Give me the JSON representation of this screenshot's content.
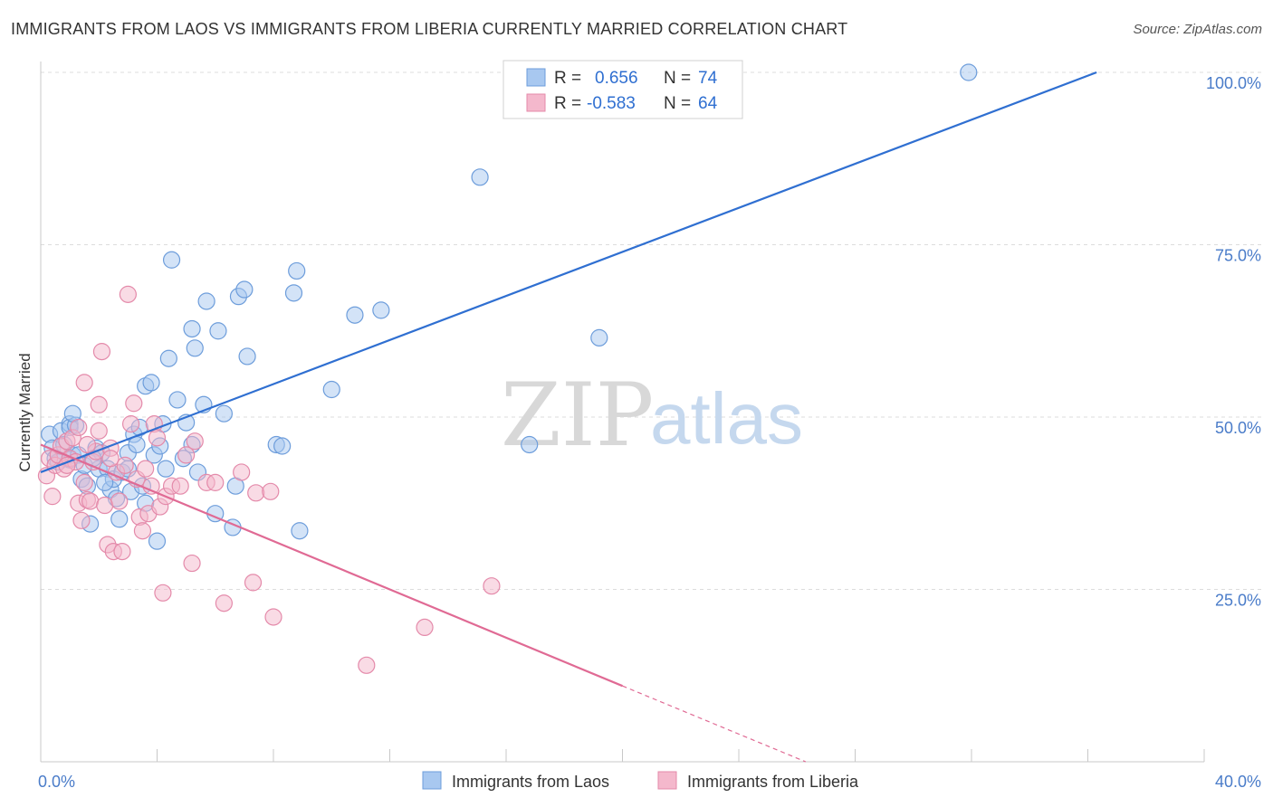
{
  "title": "IMMIGRANTS FROM LAOS VS IMMIGRANTS FROM LIBERIA CURRENTLY MARRIED CORRELATION CHART",
  "source": "Source: ZipAtlas.com",
  "watermark": {
    "zip": "ZIP",
    "atlas": "atlas"
  },
  "colors": {
    "laos": "#2f6fd1",
    "laos_fill": "#a8c8f0",
    "liberia": "#e06a94",
    "liberia_fill": "#f4b8cc",
    "tick_label": "#4a7cc9",
    "grid": "#dcdcdc"
  },
  "legend": {
    "r_label": "R =",
    "n_label": "N =",
    "laos": {
      "r": "0.656",
      "n": "74"
    },
    "liberia": {
      "r": "-0.583",
      "n": "64"
    }
  },
  "chart_data": {
    "type": "scatter",
    "title": "IMMIGRANTS FROM LAOS VS IMMIGRANTS FROM LIBERIA CURRENTLY MARRIED CORRELATION CHART",
    "xlabel": "",
    "ylabel": "Currently Married",
    "xlim": [
      0,
      40
    ],
    "ylim": [
      0,
      102
    ],
    "x_tick_labels": [
      "0.0%",
      "40.0%"
    ],
    "y_ticks": [
      25,
      50,
      75,
      100
    ],
    "y_tick_labels": [
      "25.0%",
      "50.0%",
      "75.0%",
      "100.0%"
    ],
    "grid": true,
    "legend_position": "top-center",
    "series": [
      {
        "name": "Immigrants from Laos",
        "r": 0.656,
        "n": 74,
        "trend": {
          "x": [
            0,
            36.3
          ],
          "y": [
            42,
            100
          ]
        },
        "points": [
          [
            0.3,
            47.5
          ],
          [
            0.4,
            45.5
          ],
          [
            0.5,
            44.0
          ],
          [
            0.7,
            48.0
          ],
          [
            0.8,
            46.0
          ],
          [
            1.0,
            43.8
          ],
          [
            1.1,
            44.5
          ],
          [
            1.0,
            49.0
          ],
          [
            1.0,
            48.5
          ],
          [
            1.2,
            48.8
          ],
          [
            1.1,
            50.5
          ],
          [
            1.3,
            44.5
          ],
          [
            1.4,
            41.0
          ],
          [
            1.5,
            43.0
          ],
          [
            1.6,
            40.0
          ],
          [
            1.7,
            34.5
          ],
          [
            1.9,
            45.5
          ],
          [
            2.0,
            42.5
          ],
          [
            2.1,
            44.8
          ],
          [
            2.3,
            42.5
          ],
          [
            2.4,
            39.5
          ],
          [
            2.5,
            41.0
          ],
          [
            2.6,
            38.2
          ],
          [
            2.7,
            35.2
          ],
          [
            2.8,
            42.0
          ],
          [
            3.0,
            44.8
          ],
          [
            3.0,
            42.5
          ],
          [
            3.1,
            39.2
          ],
          [
            3.2,
            47.5
          ],
          [
            3.3,
            46.0
          ],
          [
            3.4,
            48.5
          ],
          [
            3.5,
            40.0
          ],
          [
            3.6,
            37.5
          ],
          [
            3.6,
            54.5
          ],
          [
            3.8,
            55.0
          ],
          [
            3.9,
            44.5
          ],
          [
            4.0,
            32.0
          ],
          [
            4.1,
            45.8
          ],
          [
            4.2,
            49.0
          ],
          [
            4.3,
            42.5
          ],
          [
            4.4,
            58.5
          ],
          [
            4.5,
            72.8
          ],
          [
            4.7,
            52.5
          ],
          [
            4.9,
            44.0
          ],
          [
            5.0,
            49.2
          ],
          [
            5.2,
            46.0
          ],
          [
            5.2,
            62.8
          ],
          [
            5.3,
            60.0
          ],
          [
            5.4,
            42.0
          ],
          [
            5.6,
            51.8
          ],
          [
            5.7,
            66.8
          ],
          [
            6.0,
            36.0
          ],
          [
            6.1,
            62.5
          ],
          [
            6.3,
            50.5
          ],
          [
            6.6,
            34.0
          ],
          [
            6.7,
            40.0
          ],
          [
            6.8,
            67.5
          ],
          [
            7.0,
            68.5
          ],
          [
            7.1,
            58.8
          ],
          [
            8.1,
            46.0
          ],
          [
            8.3,
            45.8
          ],
          [
            8.7,
            68.0
          ],
          [
            8.8,
            71.2
          ],
          [
            8.9,
            33.5
          ],
          [
            10.0,
            54.0
          ],
          [
            10.8,
            64.8
          ],
          [
            11.7,
            65.5
          ],
          [
            15.1,
            84.8
          ],
          [
            16.8,
            46.0
          ],
          [
            19.2,
            61.5
          ],
          [
            31.9,
            100.0
          ],
          [
            0.6,
            43.5
          ],
          [
            1.8,
            44.0
          ],
          [
            2.2,
            40.5
          ]
        ]
      },
      {
        "name": "Immigrants from Liberia",
        "r": -0.583,
        "n": 64,
        "trend": {
          "x": [
            0,
            20.0
          ],
          "y": [
            46,
            11
          ]
        },
        "trend_dashed": {
          "x": [
            20.0,
            26.3
          ],
          "y": [
            11,
            0
          ]
        },
        "points": [
          [
            0.2,
            41.5
          ],
          [
            0.3,
            44.0
          ],
          [
            0.4,
            38.5
          ],
          [
            0.5,
            43.0
          ],
          [
            0.6,
            44.5
          ],
          [
            0.7,
            45.8
          ],
          [
            0.8,
            42.5
          ],
          [
            0.9,
            46.5
          ],
          [
            1.0,
            44.0
          ],
          [
            1.1,
            47.0
          ],
          [
            1.2,
            43.5
          ],
          [
            1.3,
            48.5
          ],
          [
            1.3,
            37.5
          ],
          [
            1.4,
            35.0
          ],
          [
            1.5,
            40.5
          ],
          [
            1.5,
            55.0
          ],
          [
            1.6,
            38.0
          ],
          [
            1.7,
            37.8
          ],
          [
            1.8,
            43.5
          ],
          [
            1.9,
            45.0
          ],
          [
            2.0,
            51.8
          ],
          [
            2.0,
            48.0
          ],
          [
            2.1,
            59.5
          ],
          [
            2.2,
            37.2
          ],
          [
            2.3,
            31.5
          ],
          [
            2.4,
            45.5
          ],
          [
            2.5,
            30.5
          ],
          [
            2.6,
            42.0
          ],
          [
            2.7,
            37.8
          ],
          [
            2.8,
            30.5
          ],
          [
            2.9,
            43.0
          ],
          [
            3.0,
            67.8
          ],
          [
            3.1,
            49.0
          ],
          [
            3.2,
            52.0
          ],
          [
            3.3,
            41.0
          ],
          [
            3.4,
            35.5
          ],
          [
            3.5,
            33.5
          ],
          [
            3.6,
            42.5
          ],
          [
            3.7,
            36.0
          ],
          [
            3.8,
            40.0
          ],
          [
            3.9,
            49.0
          ],
          [
            4.0,
            47.0
          ],
          [
            4.1,
            37.0
          ],
          [
            4.2,
            24.5
          ],
          [
            4.3,
            38.5
          ],
          [
            4.5,
            40.0
          ],
          [
            4.8,
            40.0
          ],
          [
            5.0,
            44.5
          ],
          [
            5.2,
            28.8
          ],
          [
            5.3,
            46.5
          ],
          [
            5.7,
            40.5
          ],
          [
            6.0,
            40.5
          ],
          [
            6.3,
            23.0
          ],
          [
            6.9,
            42.0
          ],
          [
            7.3,
            26.0
          ],
          [
            7.4,
            39.0
          ],
          [
            7.9,
            39.2
          ],
          [
            8.0,
            21.0
          ],
          [
            11.2,
            14.0
          ],
          [
            13.2,
            19.5
          ],
          [
            15.5,
            25.5
          ],
          [
            0.9,
            43.0
          ],
          [
            1.6,
            46.0
          ],
          [
            2.4,
            44.0
          ]
        ]
      }
    ]
  }
}
